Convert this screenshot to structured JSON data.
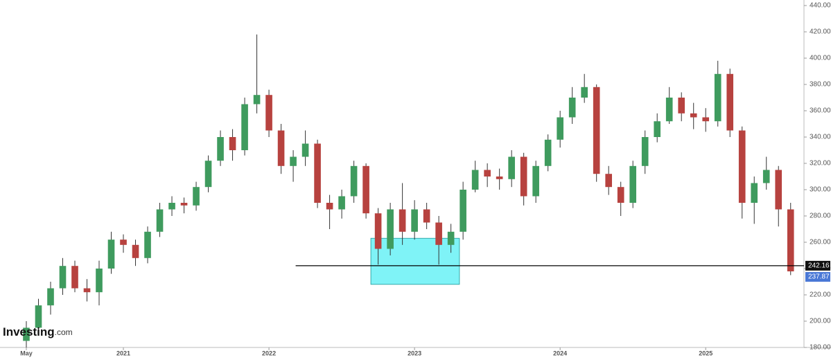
{
  "chart_data": {
    "type": "candlestick",
    "open": [
      185,
      195,
      212,
      225,
      242,
      225,
      222,
      240,
      262,
      258,
      248,
      268,
      285,
      290,
      288,
      302,
      322,
      340,
      330,
      365,
      372,
      345,
      318,
      325,
      335,
      290,
      285,
      295,
      318,
      282,
      255,
      285,
      268,
      285,
      275,
      258,
      268,
      300,
      315,
      310,
      308,
      325,
      295,
      318,
      338,
      355,
      370,
      378,
      312,
      302,
      290,
      318,
      340,
      352,
      370,
      358,
      355,
      352,
      388,
      345,
      290,
      305,
      315,
      285
    ],
    "high": [
      200,
      217,
      230,
      248,
      246,
      232,
      246,
      268,
      266,
      262,
      272,
      290,
      295,
      294,
      306,
      326,
      345,
      346,
      370,
      418,
      376,
      350,
      330,
      345,
      338,
      296,
      300,
      322,
      320,
      286,
      290,
      305,
      292,
      290,
      280,
      274,
      306,
      322,
      320,
      316,
      330,
      328,
      322,
      342,
      360,
      378,
      388,
      380,
      318,
      306,
      322,
      345,
      358,
      378,
      374,
      366,
      362,
      398,
      392,
      348,
      310,
      325,
      318,
      290
    ],
    "low": [
      180,
      190,
      205,
      220,
      222,
      215,
      212,
      236,
      252,
      242,
      244,
      264,
      280,
      282,
      284,
      298,
      318,
      322,
      326,
      358,
      340,
      312,
      306,
      318,
      286,
      270,
      278,
      290,
      278,
      243,
      250,
      258,
      262,
      270,
      243,
      252,
      262,
      298,
      302,
      300,
      302,
      288,
      290,
      314,
      332,
      350,
      366,
      306,
      296,
      280,
      286,
      312,
      336,
      350,
      352,
      346,
      344,
      348,
      340,
      278,
      274,
      300,
      272,
      235
    ],
    "close": [
      195,
      212,
      225,
      242,
      225,
      222,
      240,
      262,
      258,
      248,
      268,
      285,
      290,
      288,
      302,
      322,
      340,
      330,
      365,
      372,
      345,
      318,
      325,
      335,
      290,
      285,
      295,
      318,
      282,
      255,
      285,
      268,
      285,
      275,
      258,
      268,
      300,
      315,
      310,
      308,
      325,
      295,
      318,
      338,
      355,
      370,
      378,
      312,
      302,
      290,
      318,
      340,
      352,
      370,
      358,
      355,
      352,
      388,
      345,
      290,
      305,
      315,
      285,
      237.87
    ],
    "up_color": "#3f9b5e",
    "down_color": "#b7423f",
    "xlim": [
      -2.17,
      64.1
    ],
    "xticks": [
      {
        "value": 0,
        "label": "May"
      },
      {
        "value": 8,
        "label": "2021"
      },
      {
        "value": 20,
        "label": "2022"
      },
      {
        "value": 32,
        "label": "2023"
      },
      {
        "value": 44,
        "label": "2024"
      },
      {
        "value": 56,
        "label": "2025"
      }
    ],
    "ylim": [
      180,
      440
    ],
    "yticks": [
      {
        "value": 180,
        "label": "180.00"
      },
      {
        "value": 200,
        "label": "200.00"
      },
      {
        "value": 220,
        "label": "220.00"
      },
      {
        "value": 240,
        "label": "240.00"
      },
      {
        "value": 260,
        "label": "260.00"
      },
      {
        "value": 280,
        "label": "280.00"
      },
      {
        "value": 300,
        "label": "300.00"
      },
      {
        "value": 320,
        "label": "320.00"
      },
      {
        "value": 340,
        "label": "340.00"
      },
      {
        "value": 360,
        "label": "360.00"
      },
      {
        "value": 380,
        "label": "380.00"
      },
      {
        "value": 400,
        "label": "400.00"
      },
      {
        "value": 420,
        "label": "420.00"
      },
      {
        "value": 440,
        "label": "440.00"
      }
    ],
    "level": {
      "value": 242.16,
      "label": "242.16",
      "from": 22.2
    },
    "highlight": {
      "xlim": [
        28.4,
        35.7
      ],
      "ylim": [
        228,
        263
      ],
      "color": "#7ff3f7"
    },
    "brand": {
      "name": "Investing",
      "suffix": ".com"
    }
  }
}
